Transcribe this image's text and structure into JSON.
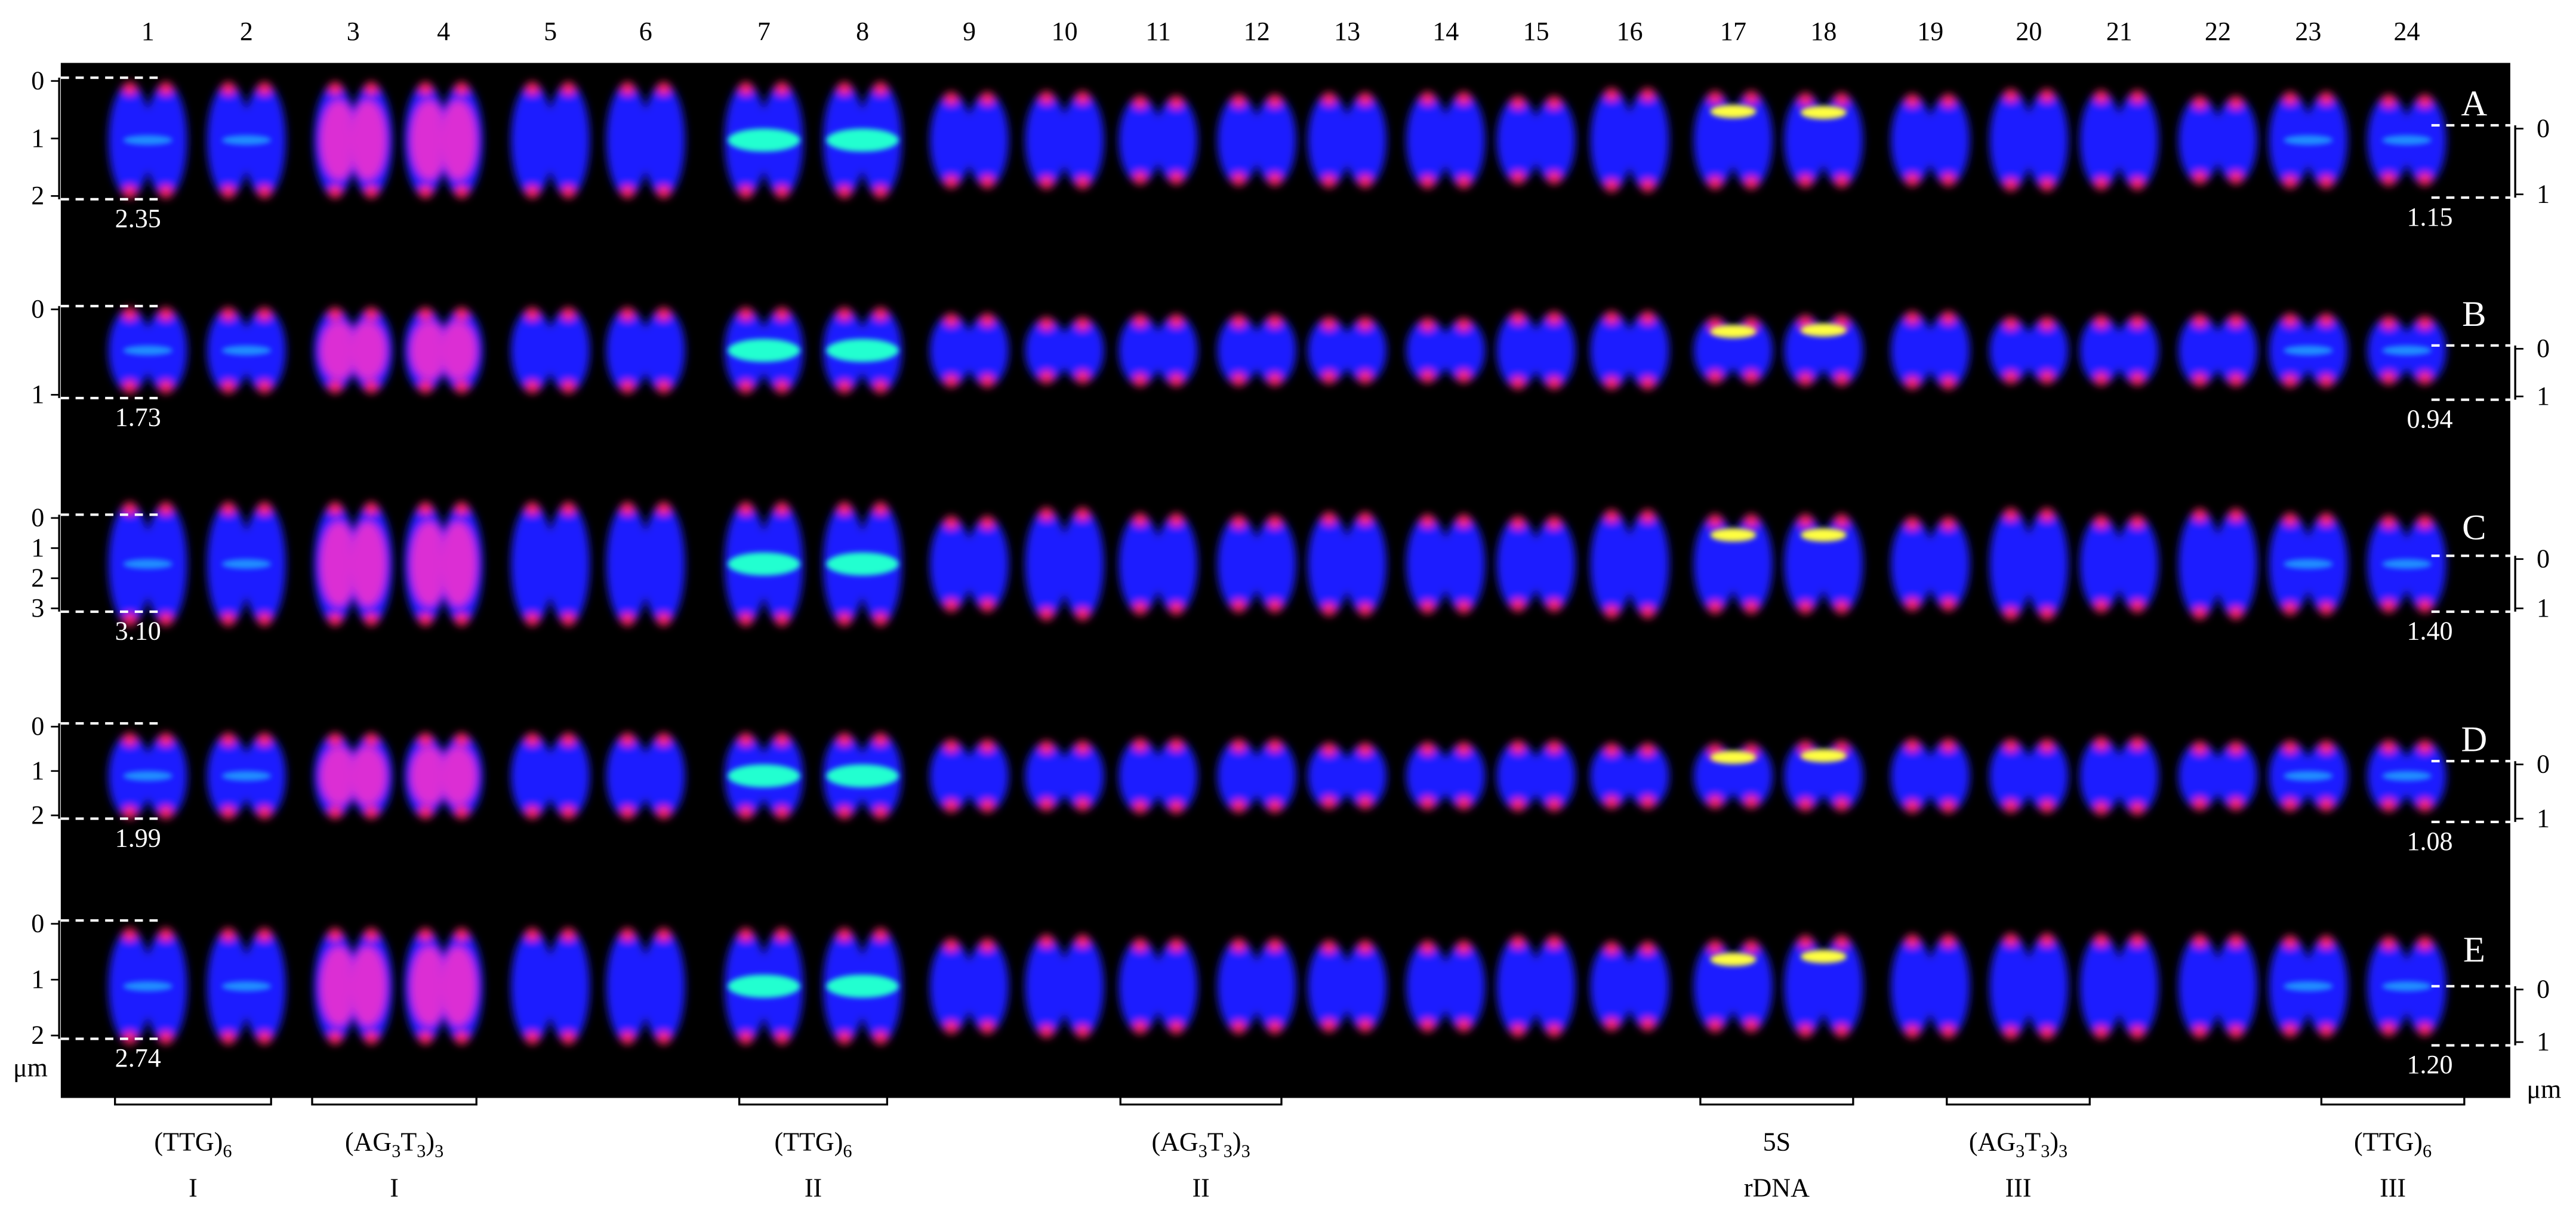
{
  "columns": [
    "1",
    "2",
    "3",
    "4",
    "5",
    "6",
    "7",
    "8",
    "9",
    "10",
    "11",
    "12",
    "13",
    "14",
    "15",
    "16",
    "17",
    "18",
    "19",
    "20",
    "21",
    "22",
    "23",
    "24"
  ],
  "rows": [
    {
      "label": "A",
      "left_ticks": [
        "0",
        "1",
        "2"
      ],
      "left_length": "2.35",
      "right_ticks": [
        "0",
        "1"
      ],
      "right_length": "1.15"
    },
    {
      "label": "B",
      "left_ticks": [
        "0",
        "1"
      ],
      "left_length": "1.73",
      "right_ticks": [
        "0",
        "1"
      ],
      "right_length": "0.94"
    },
    {
      "label": "C",
      "left_ticks": [
        "0",
        "1",
        "2",
        "3"
      ],
      "left_length": "3.10",
      "right_ticks": [
        "0",
        "1"
      ],
      "right_length": "1.40"
    },
    {
      "label": "D",
      "left_ticks": [
        "0",
        "1",
        "2"
      ],
      "left_length": "1.99",
      "right_ticks": [
        "0",
        "1"
      ],
      "right_length": "1.08"
    },
    {
      "label": "E",
      "left_ticks": [
        "0",
        "1",
        "2"
      ],
      "left_length": "2.74",
      "right_ticks": [
        "0",
        "1"
      ],
      "right_length": "1.20"
    }
  ],
  "unit_left": "μm",
  "unit_right": "μm",
  "groups": [
    {
      "probe": [
        {
          "text": "(TTG)"
        },
        {
          "text": "6",
          "sub": true
        }
      ],
      "name": "I"
    },
    {
      "probe": [
        {
          "text": "(AG"
        },
        {
          "text": "3",
          "sub": true
        },
        {
          "text": "T"
        },
        {
          "text": "3",
          "sub": true
        },
        {
          "text": ")"
        },
        {
          "text": "3",
          "sub": true
        }
      ],
      "name": "I"
    },
    {
      "probe": [
        {
          "text": "(TTG)"
        },
        {
          "text": "6",
          "sub": true
        }
      ],
      "name": "II"
    },
    {
      "probe": [
        {
          "text": "(AG"
        },
        {
          "text": "3",
          "sub": true
        },
        {
          "text": "T"
        },
        {
          "text": "3",
          "sub": true
        },
        {
          "text": ")"
        },
        {
          "text": "3",
          "sub": true
        }
      ],
      "name": "II"
    },
    {
      "probe": [
        {
          "text": "5S"
        }
      ],
      "name": "rDNA"
    },
    {
      "probe": [
        {
          "text": "(AG"
        },
        {
          "text": "3",
          "sub": true
        },
        {
          "text": "T"
        },
        {
          "text": "3",
          "sub": true
        },
        {
          "text": ")"
        },
        {
          "text": "3",
          "sub": true
        }
      ],
      "name": "III"
    },
    {
      "probe": [
        {
          "text": "(TTG)"
        },
        {
          "text": "6",
          "sub": true
        }
      ],
      "name": "III"
    }
  ]
}
